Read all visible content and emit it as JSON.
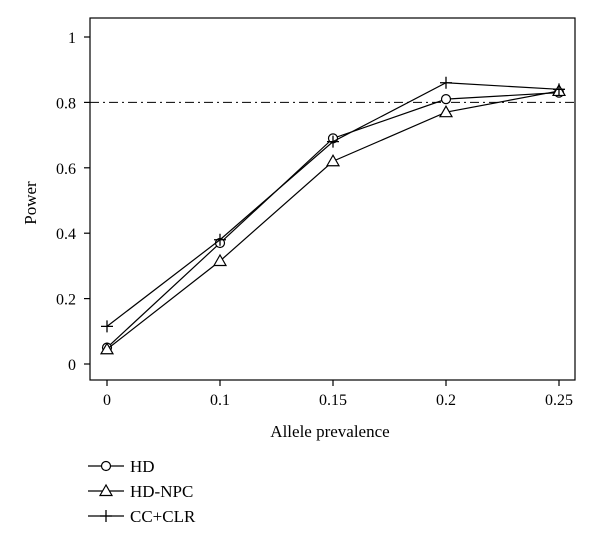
{
  "chart_data": {
    "type": "line",
    "title": "",
    "xlabel": "Allele prevalence",
    "ylabel": "Power",
    "x": [
      0,
      0.1,
      0.15,
      0.2,
      0.25
    ],
    "x_tick_labels": [
      "0",
      "0.1",
      "0.15",
      "0.2",
      "0.25"
    ],
    "y_ticks": [
      0,
      0.2,
      0.4,
      0.6,
      0.8,
      1
    ],
    "y_tick_labels": [
      "0",
      "0.2",
      "0.4",
      "0.6",
      "0.8",
      "1"
    ],
    "xlim": [
      0,
      0.25
    ],
    "ylim": [
      0,
      1
    ],
    "reference_line": {
      "y": 0.8,
      "style": "dash-dot"
    },
    "grid": false,
    "legend_position": "bottom-left, below plot",
    "line_color": "#000000",
    "series": [
      {
        "name": "HD",
        "marker": "circle",
        "values": [
          0.05,
          0.37,
          0.69,
          0.81,
          0.83
        ]
      },
      {
        "name": "HD-NPC",
        "marker": "triangle",
        "values": [
          0.045,
          0.315,
          0.62,
          0.77,
          0.835
        ]
      },
      {
        "name": "CC+CLR",
        "marker": "plus",
        "values": [
          0.115,
          0.38,
          0.68,
          0.86,
          0.84
        ]
      }
    ]
  }
}
